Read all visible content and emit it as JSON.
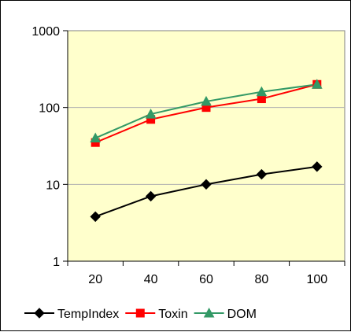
{
  "chart_data": {
    "type": "line",
    "x": [
      20,
      40,
      60,
      80,
      100
    ],
    "xlim": [
      10,
      110
    ],
    "x_ticks": [
      "20",
      "40",
      "60",
      "80",
      "100"
    ],
    "y_scale": "log",
    "ylim": [
      1,
      1000
    ],
    "y_ticks": [
      "1",
      "10",
      "100",
      "1000"
    ],
    "grid": "horizontal major gridlines",
    "plot_background": "#FFFFCC",
    "legend_position": "bottom",
    "series": [
      {
        "name": "TempIndex",
        "values": [
          3.8,
          7.0,
          10.0,
          13.5,
          17.0
        ],
        "color": "#000000",
        "marker": "diamond"
      },
      {
        "name": "Toxin",
        "values": [
          35,
          70,
          100,
          130,
          200
        ],
        "color": "#FF0000",
        "marker": "square"
      },
      {
        "name": "DOM",
        "values": [
          40,
          82,
          120,
          160,
          200
        ],
        "color": "#339966",
        "marker": "triangle"
      }
    ]
  }
}
